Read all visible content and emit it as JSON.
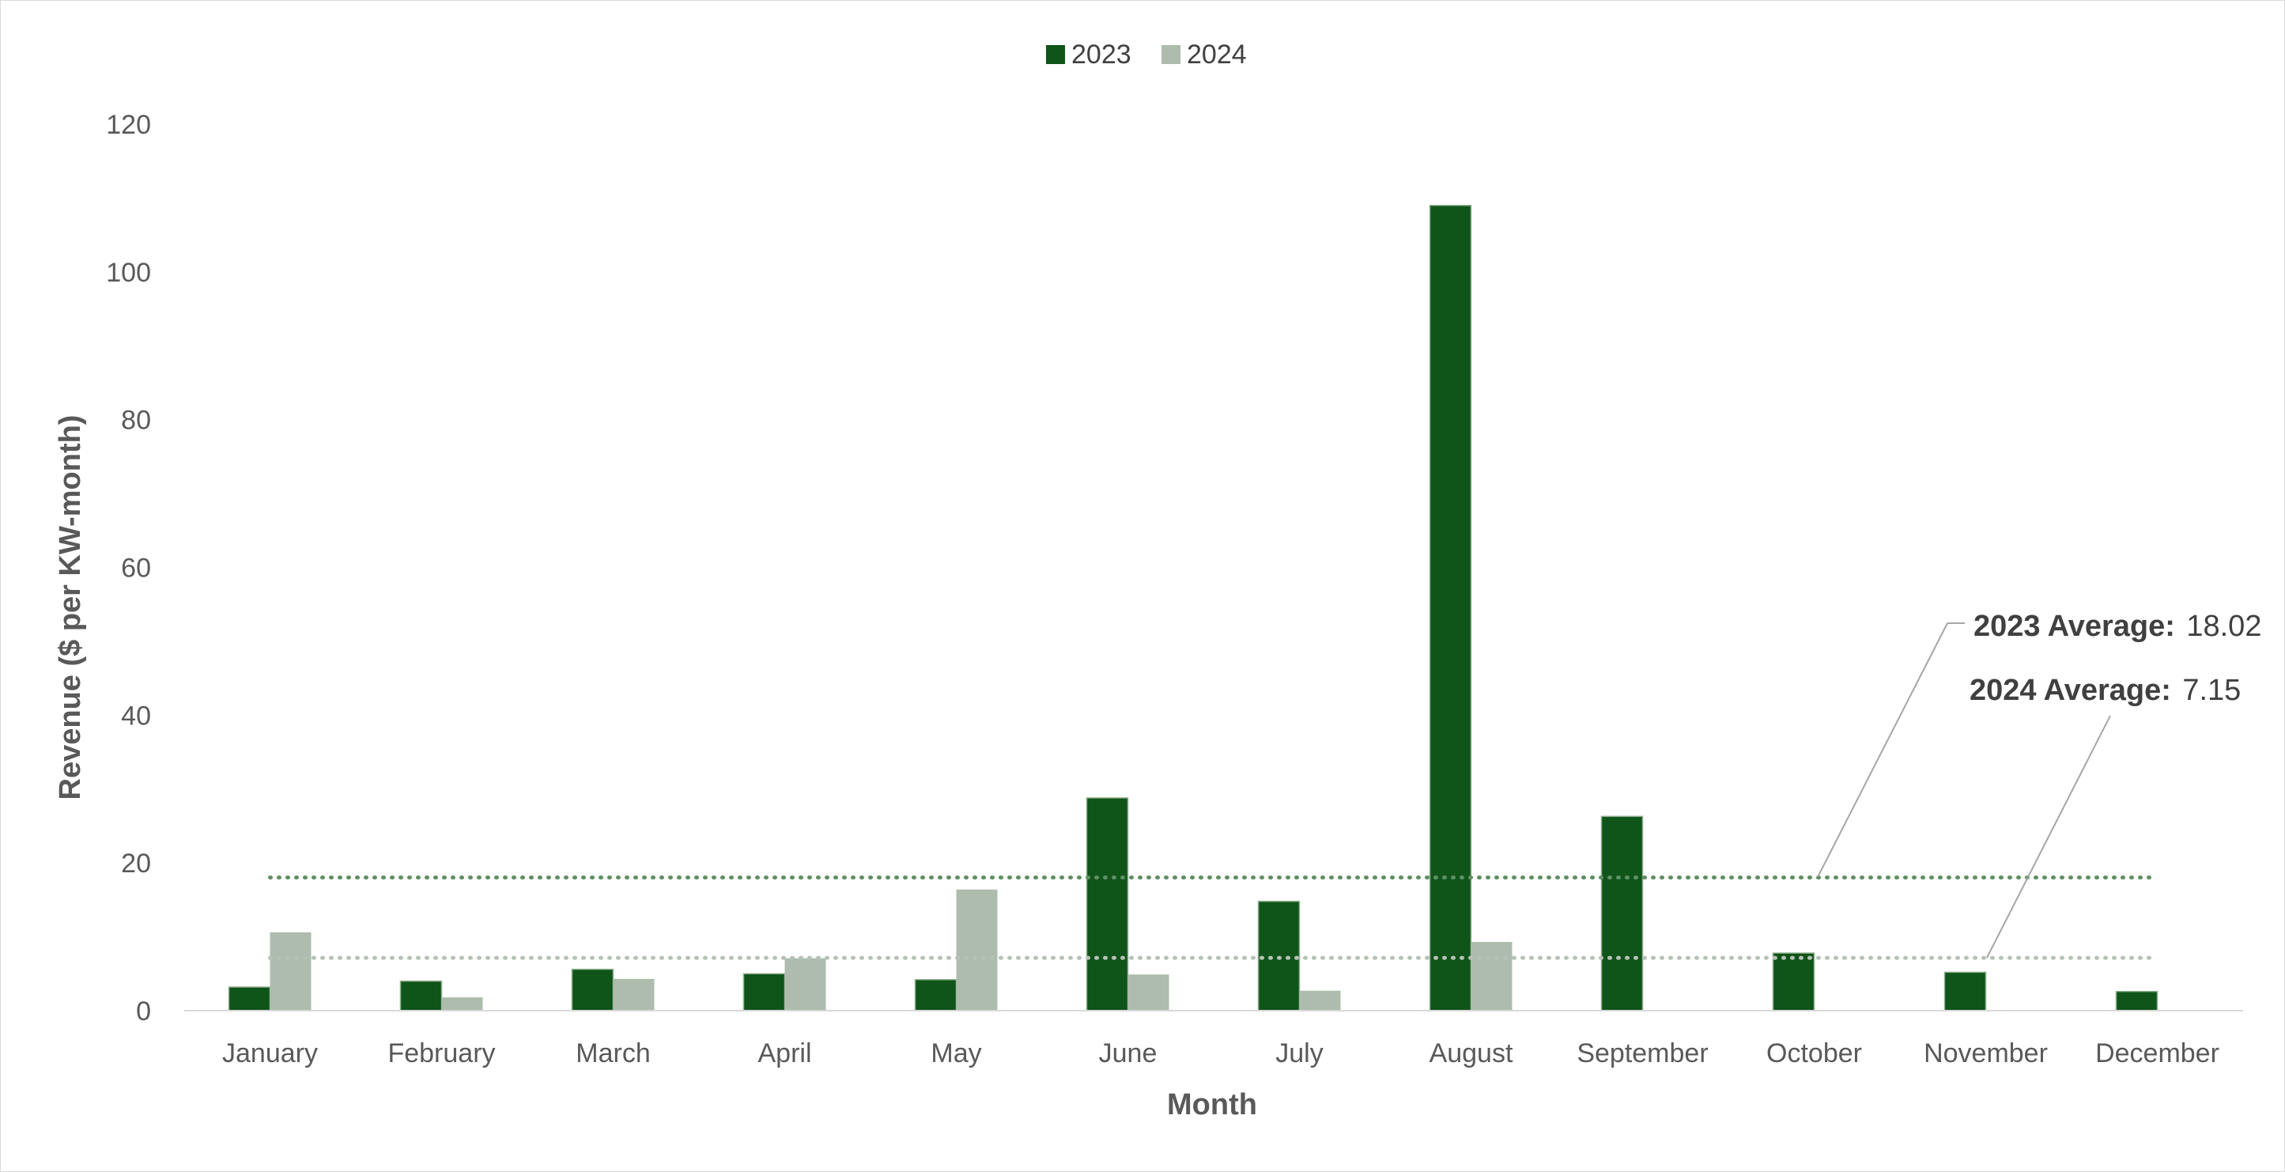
{
  "chart_data": {
    "type": "bar",
    "title": "",
    "xlabel": "Month",
    "ylabel": "Revenue ($ per KW-month)",
    "ylim": [
      0,
      120
    ],
    "yticks": [
      0,
      20,
      40,
      60,
      80,
      100,
      120
    ],
    "grid": false,
    "legend_position": "top-center",
    "categories": [
      "January",
      "February",
      "March",
      "April",
      "May",
      "June",
      "July",
      "August",
      "September",
      "October",
      "November",
      "December"
    ],
    "series": [
      {
        "name": "2023",
        "color": "#0f5419",
        "values": [
          3.2,
          4.0,
          5.6,
          5.0,
          4.2,
          28.8,
          14.8,
          109.0,
          26.3,
          7.8,
          5.2,
          2.6
        ]
      },
      {
        "name": "2024",
        "color": "#adbcad",
        "values": [
          10.6,
          1.8,
          4.3,
          7.1,
          16.4,
          4.9,
          2.7,
          9.3,
          null,
          null,
          null,
          null
        ]
      }
    ],
    "averages": [
      {
        "series": "2023",
        "label": "2023 Average:",
        "value_text": "18.02",
        "value": 18.02,
        "color": "#5f8f63"
      },
      {
        "series": "2024",
        "label": "2024 Average:",
        "value_text": "7.15",
        "value": 7.15,
        "color": "#b7c2b7"
      }
    ]
  }
}
